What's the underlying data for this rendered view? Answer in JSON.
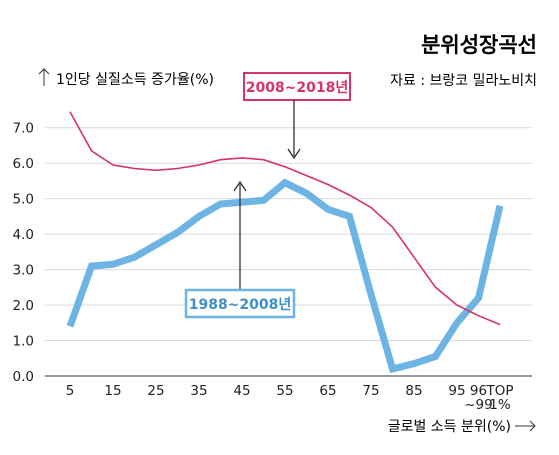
{
  "chart_data": {
    "type": "line",
    "title": "분위성장곡선",
    "source": "자료 : 브랑코 밀라노비치",
    "ylabel": "1인당 실질소득 증가율(%)",
    "xlabel": "글로벌 소득 분위(%)",
    "ylim": [
      0,
      7.5
    ],
    "yticks": [
      "0.0",
      "1.0",
      "2.0",
      "3.0",
      "4.0",
      "5.0",
      "6.0",
      "7.0"
    ],
    "categories": [
      "5",
      "10",
      "15",
      "20",
      "25",
      "30",
      "35",
      "40",
      "45",
      "50",
      "55",
      "60",
      "65",
      "70",
      "75",
      "80",
      "85",
      "90",
      "95",
      "96~99",
      "TOP 1%"
    ],
    "xtick_labels": [
      "5",
      "15",
      "25",
      "35",
      "45",
      "55",
      "65",
      "75",
      "85",
      "95",
      "96\n~99",
      "TOP\n1%"
    ],
    "xtick_positions": [
      0,
      2,
      4,
      6,
      8,
      10,
      12,
      14,
      16,
      18,
      19,
      20
    ],
    "series": [
      {
        "name": "1988~2008년",
        "color": "#6db3e3",
        "values": [
          1.4,
          3.1,
          3.15,
          3.35,
          3.7,
          4.05,
          4.5,
          4.85,
          4.9,
          4.95,
          5.45,
          5.15,
          4.7,
          4.5,
          2.3,
          0.2,
          0.35,
          0.55,
          1.5,
          2.2,
          4.8
        ]
      },
      {
        "name": "2008~2018년",
        "color": "#d6336c",
        "values": [
          7.45,
          6.35,
          5.95,
          5.85,
          5.8,
          5.85,
          5.95,
          6.1,
          6.15,
          6.1,
          5.9,
          5.65,
          5.4,
          5.1,
          4.75,
          4.2,
          3.35,
          2.5,
          2.0,
          1.7,
          1.45
        ]
      }
    ]
  }
}
